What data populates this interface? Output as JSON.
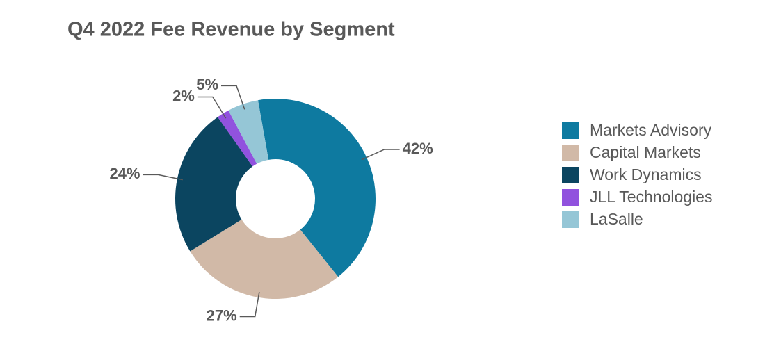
{
  "chart_data": {
    "type": "donut",
    "title": "Q4 2022 Fee Revenue by Segment",
    "categories": [
      "Markets Advisory",
      "Capital Markets",
      "Work Dynamics",
      "JLL Technologies",
      "LaSalle"
    ],
    "values": [
      42,
      27,
      24,
      2,
      5
    ],
    "value_labels": [
      "42%",
      "27%",
      "24%",
      "2%",
      "5%"
    ],
    "colors": [
      "#0e7aa0",
      "#d1b9a7",
      "#0b4560",
      "#9152de",
      "#95c6d6"
    ],
    "legend": "right"
  }
}
